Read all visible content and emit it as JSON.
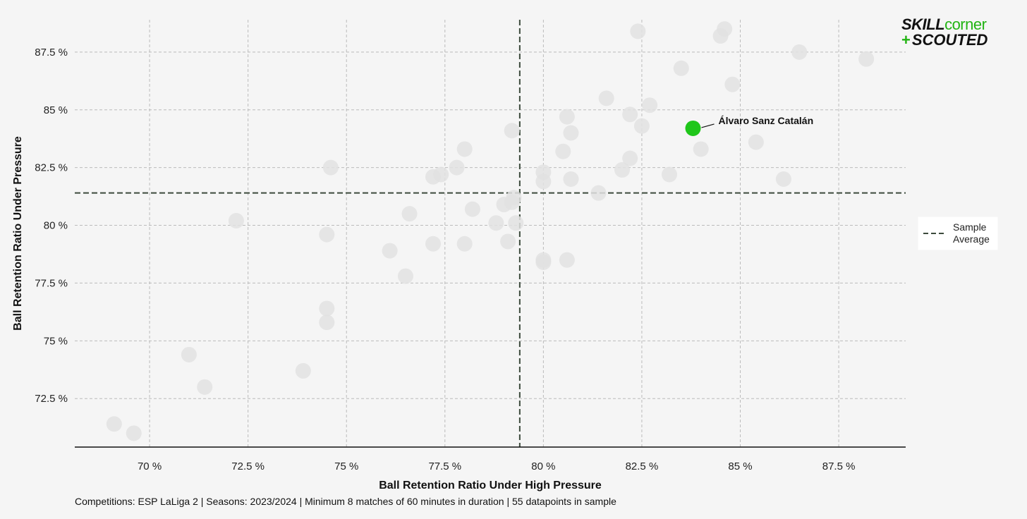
{
  "logo": {
    "part1": "SKILL",
    "part2": "corner",
    "plus": "+",
    "part3": "SCOUTED"
  },
  "footnote": "Competitions: ESP LaLiga 2 | Seasons: 2023/2024 | Minimum 8 matches of 60 minutes in duration | 55 datapoints in sample",
  "legend": {
    "line1": "Sample",
    "line2": "Average"
  },
  "colors": {
    "background": "#f5f5f5",
    "point": "#e2e2e2",
    "highlight": "#1fc61a",
    "avg_line": "#3c4a3c",
    "grid": "#bbbbbb"
  },
  "chart_data": {
    "type": "scatter",
    "xlabel": "Ball Retention Ratio Under High Pressure",
    "ylabel": "Ball Retention Ratio Under Pressure",
    "xlim": [
      68.1,
      89.2
    ],
    "ylim": [
      70.4,
      88.9
    ],
    "x_ticks": [
      70,
      72.5,
      75,
      77.5,
      80,
      82.5,
      85,
      87.5
    ],
    "x_tick_labels": [
      "70 %",
      "72.5 %",
      "75 %",
      "77.5 %",
      "80 %",
      "82.5 %",
      "85 %",
      "87.5 %"
    ],
    "y_ticks": [
      72.5,
      75,
      77.5,
      80,
      82.5,
      85,
      87.5
    ],
    "y_tick_labels": [
      "72.5 %",
      "75 %",
      "77.5 %",
      "80 %",
      "82.5 %",
      "85 %",
      "87.5 %"
    ],
    "grid": true,
    "average_x": 79.4,
    "average_y": 81.4,
    "highlight": {
      "label": "Álvaro Sanz Catalán",
      "x": 83.8,
      "y": 84.2
    },
    "points": [
      [
        69.1,
        71.4
      ],
      [
        69.6,
        71.0
      ],
      [
        71.0,
        74.4
      ],
      [
        71.4,
        73.0
      ],
      [
        72.2,
        80.2
      ],
      [
        73.9,
        73.7
      ],
      [
        74.5,
        76.4
      ],
      [
        74.5,
        75.8
      ],
      [
        74.5,
        79.6
      ],
      [
        74.6,
        82.5
      ],
      [
        76.1,
        78.9
      ],
      [
        76.5,
        77.8
      ],
      [
        76.6,
        80.5
      ],
      [
        77.2,
        79.2
      ],
      [
        77.2,
        82.1
      ],
      [
        77.4,
        82.2
      ],
      [
        77.8,
        82.5
      ],
      [
        78.0,
        79.2
      ],
      [
        78.0,
        83.3
      ],
      [
        78.2,
        80.7
      ],
      [
        78.8,
        80.1
      ],
      [
        79.0,
        80.9
      ],
      [
        79.1,
        79.3
      ],
      [
        79.2,
        84.1
      ],
      [
        79.2,
        81.0
      ],
      [
        79.3,
        80.1
      ],
      [
        80.0,
        82.3
      ],
      [
        80.0,
        81.9
      ],
      [
        80.0,
        78.5
      ],
      [
        80.0,
        78.4
      ],
      [
        80.5,
        83.2
      ],
      [
        80.6,
        78.5
      ],
      [
        80.6,
        84.7
      ],
      [
        80.7,
        84.0
      ],
      [
        80.7,
        82.0
      ],
      [
        81.4,
        81.4
      ],
      [
        81.6,
        85.5
      ],
      [
        82.0,
        82.4
      ],
      [
        82.2,
        82.9
      ],
      [
        82.2,
        84.8
      ],
      [
        82.4,
        88.4
      ],
      [
        82.5,
        84.3
      ],
      [
        82.7,
        85.2
      ],
      [
        83.2,
        82.2
      ],
      [
        83.5,
        86.8
      ],
      [
        84.0,
        83.3
      ],
      [
        84.5,
        88.2
      ],
      [
        84.6,
        88.5
      ],
      [
        84.8,
        86.1
      ],
      [
        85.4,
        83.6
      ],
      [
        86.1,
        82.0
      ],
      [
        86.5,
        87.5
      ],
      [
        88.2,
        87.2
      ],
      [
        79.25,
        81.2
      ]
    ]
  }
}
